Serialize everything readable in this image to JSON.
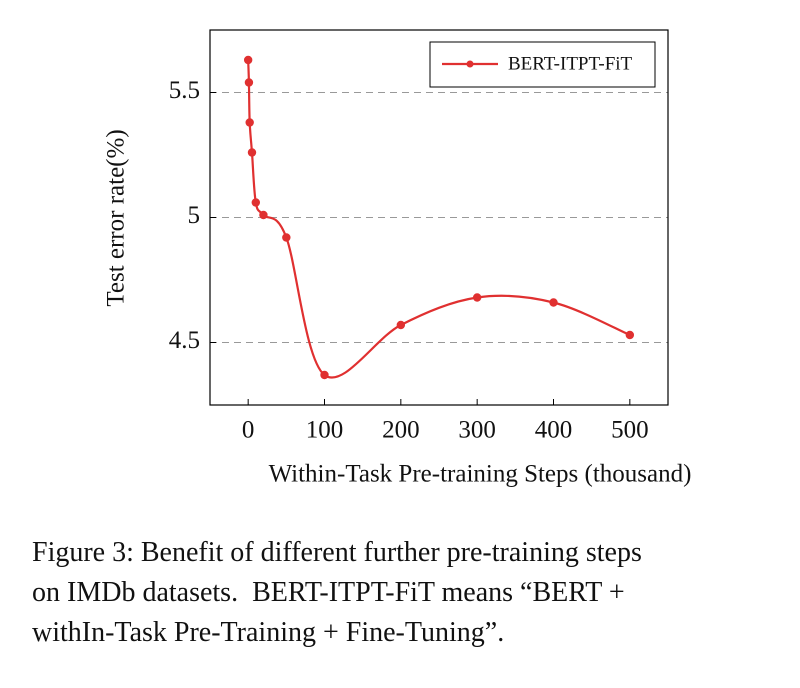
{
  "chart_data": {
    "type": "line",
    "x_label": "Within-Task Pre-training Steps (thousand)",
    "y_label": "Test error rate(%)",
    "series": [
      {
        "name": "BERT-ITPT-FiT",
        "color": "#e03030",
        "x": [
          0,
          1,
          2,
          5,
          10,
          20,
          50,
          100,
          200,
          300,
          400,
          500
        ],
        "values": [
          5.63,
          5.54,
          5.38,
          5.26,
          5.06,
          5.01,
          4.92,
          4.37,
          4.57,
          4.68,
          4.66,
          4.53
        ]
      }
    ],
    "xlim": [
      -50,
      550
    ],
    "ylim": [
      4.25,
      5.75
    ],
    "xticks": [
      0,
      100,
      200,
      300,
      400,
      500
    ],
    "yticks": [
      4.5,
      5,
      5.5
    ],
    "grid": true,
    "legend_position": "upper-right",
    "smooth": true
  },
  "caption": {
    "lines": [
      "Figure 3: Benefit of different further pre-training steps",
      "on IMDb datasets.  BERT-ITPT-FiT means “BERT +",
      "withIn-Task Pre-Training + Fine-Tuning”."
    ]
  }
}
